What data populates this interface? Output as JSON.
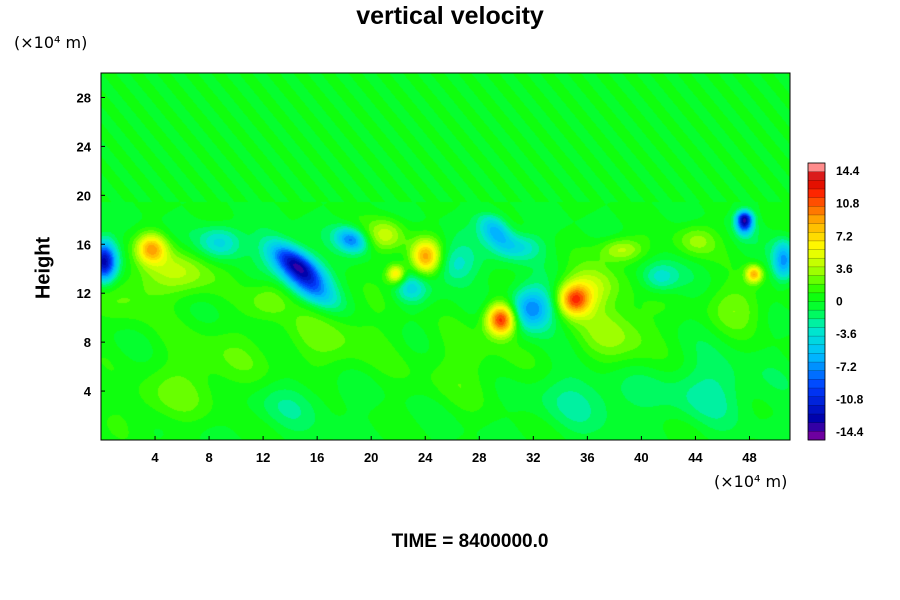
{
  "chart_data": {
    "type": "heatmap",
    "title": "vertical velocity",
    "ylabel": "Height",
    "y_unit_label": "(×10⁴ m)",
    "x_unit_label": "(×10⁴ m)",
    "xlim": [
      0,
      51
    ],
    "ylim": [
      0,
      30
    ],
    "x_ticks": [
      4,
      8,
      12,
      16,
      20,
      24,
      28,
      32,
      36,
      40,
      44,
      48
    ],
    "y_ticks": [
      4,
      8,
      12,
      16,
      20,
      24,
      28
    ],
    "colorbar": {
      "min": -14.4,
      "max": 14.4,
      "tick_values": [
        14.4,
        10.8,
        7.2,
        3.6,
        0,
        -3.6,
        -7.2,
        -10.8,
        -14.4
      ],
      "tick_labels": [
        "14.4",
        "10.8",
        "7.2",
        "3.6",
        "0",
        "-3.6",
        "-7.2",
        "-10.8",
        "-14.4"
      ],
      "levels": 32
    },
    "background_level": 0,
    "disturbance_top": 19.5,
    "features": [
      {
        "x": 0.2,
        "y": 14.6,
        "rx": 0.9,
        "ry": 1.6,
        "value": -12.5
      },
      {
        "x": 3.7,
        "y": 15.7,
        "rx": 1.1,
        "ry": 1.2,
        "value": 7.5
      },
      {
        "x": 6.0,
        "y": 13.8,
        "rx": 2.6,
        "ry": 2.0,
        "value": 3.6
      },
      {
        "x": 2.0,
        "y": 12.0,
        "rx": 2.5,
        "ry": 2.5,
        "value": 2.0
      },
      {
        "x": 8.8,
        "y": 16.2,
        "rx": 1.6,
        "ry": 1.4,
        "value": -4.5
      },
      {
        "x": 14.5,
        "y": 14.3,
        "rx": 2.4,
        "ry": 1.1,
        "value": -13.5,
        "angle": -40
      },
      {
        "x": 15.6,
        "y": 12.2,
        "rx": 2.2,
        "ry": 1.0,
        "value": -5.0,
        "angle": -35
      },
      {
        "x": 12.5,
        "y": 11.6,
        "rx": 1.5,
        "ry": 1.5,
        "value": 2.5
      },
      {
        "x": 18.5,
        "y": 16.4,
        "rx": 1.2,
        "ry": 0.9,
        "value": -7.5,
        "angle": -30
      },
      {
        "x": 21.1,
        "y": 16.8,
        "rx": 1.4,
        "ry": 1.4,
        "value": 4.0
      },
      {
        "x": 24.0,
        "y": 15.0,
        "rx": 1.1,
        "ry": 1.4,
        "value": 8.5
      },
      {
        "x": 21.8,
        "y": 13.6,
        "rx": 0.7,
        "ry": 0.8,
        "value": 7.2
      },
      {
        "x": 22.9,
        "y": 12.4,
        "rx": 1.2,
        "ry": 1.2,
        "value": -3.8
      },
      {
        "x": 26.2,
        "y": 14.4,
        "rx": 1.5,
        "ry": 1.6,
        "value": -3.6
      },
      {
        "x": 29.6,
        "y": 9.9,
        "rx": 1.1,
        "ry": 1.3,
        "value": 12.5
      },
      {
        "x": 31.8,
        "y": 10.8,
        "rx": 1.6,
        "ry": 1.7,
        "value": -8.0
      },
      {
        "x": 35.0,
        "y": 11.5,
        "rx": 1.2,
        "ry": 1.3,
        "value": 9.5
      },
      {
        "x": 36.3,
        "y": 12.6,
        "rx": 2.2,
        "ry": 1.7,
        "value": 3.6
      },
      {
        "x": 29.2,
        "y": 17.1,
        "rx": 1.0,
        "ry": 1.6,
        "value": -6.5,
        "angle": 35
      },
      {
        "x": 31.0,
        "y": 15.8,
        "rx": 1.6,
        "ry": 1.1,
        "value": -3.6
      },
      {
        "x": 38.5,
        "y": 15.6,
        "rx": 1.6,
        "ry": 1.0,
        "value": 4.5
      },
      {
        "x": 41.3,
        "y": 13.3,
        "rx": 1.4,
        "ry": 1.2,
        "value": -3.8
      },
      {
        "x": 44.0,
        "y": 16.3,
        "rx": 1.5,
        "ry": 1.3,
        "value": 3.0
      },
      {
        "x": 47.6,
        "y": 18.0,
        "rx": 0.6,
        "ry": 1.0,
        "value": -13.0
      },
      {
        "x": 48.3,
        "y": 13.6,
        "rx": 0.6,
        "ry": 0.7,
        "value": 8.0
      },
      {
        "x": 50.5,
        "y": 14.7,
        "rx": 0.8,
        "ry": 1.6,
        "value": -7.0
      },
      {
        "x": 47.2,
        "y": 11.0,
        "rx": 2.2,
        "ry": 2.0,
        "value": 2.5
      },
      {
        "x": 38.0,
        "y": 8.8,
        "rx": 3.0,
        "ry": 3.0,
        "value": 3.0
      },
      {
        "x": 17.0,
        "y": 8.5,
        "rx": 4.0,
        "ry": 3.0,
        "value": 2.0
      },
      {
        "x": 8.0,
        "y": 6.0,
        "rx": 4.0,
        "ry": 3.5,
        "value": 1.8
      },
      {
        "x": 27.0,
        "y": 6.0,
        "rx": 4.0,
        "ry": 3.0,
        "value": 1.5
      },
      {
        "x": 36.0,
        "y": 3.5,
        "rx": 4.0,
        "ry": 2.5,
        "value": -2.0
      },
      {
        "x": 45.0,
        "y": 4.0,
        "rx": 3.5,
        "ry": 2.5,
        "value": -2.2
      },
      {
        "x": 14.0,
        "y": 3.0,
        "rx": 3.5,
        "ry": 2.0,
        "value": -1.5
      },
      {
        "x": 4.0,
        "y": 3.0,
        "rx": 3.0,
        "ry": 2.0,
        "value": 1.5
      }
    ]
  },
  "footer": {
    "time_label": "TIME = ",
    "time_value": "8400000.0"
  }
}
